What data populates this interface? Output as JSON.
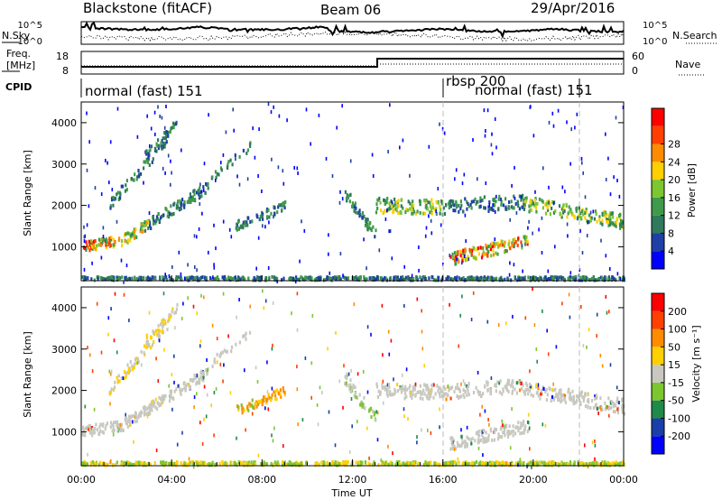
{
  "header": {
    "station": "Blackstone (fitACF)",
    "beam": "Beam 06",
    "date": "29/Apr/2016"
  },
  "noise_panel": {
    "left_label": "N.Sky",
    "right_label": "N.Search",
    "ticks_left": [
      "10^5",
      "10^0"
    ],
    "ticks_right": [
      "10^5",
      "10^0"
    ]
  },
  "freq_panel": {
    "left_label_1": "Freq.",
    "left_label_2": "[MHz]",
    "right_label": "Nave",
    "ticks_left": [
      "18",
      "8"
    ],
    "ticks_right": [
      "60",
      "0"
    ]
  },
  "cpid_panel": {
    "label": "CPID",
    "segments": [
      {
        "label": "normal (fast) 151",
        "start_hour": 0
      },
      {
        "label": "rbsp 200",
        "start_hour": 16
      },
      {
        "label": "normal (fast) 151",
        "start_hour": 16.9
      }
    ]
  },
  "chart_data": [
    {
      "type": "heatmap",
      "name": "power",
      "ylabel": "Slant Range [km]",
      "ylim": [
        180,
        4500
      ],
      "yticks": [
        "1000",
        "2000",
        "3000",
        "4000"
      ],
      "colorbar_label": "Power [dB]",
      "colorbar_ticks": [
        "4",
        "8",
        "12",
        "16",
        "20",
        "24",
        "28"
      ],
      "colors": [
        "#0000ff",
        "#1f3fa6",
        "#2e7a5a",
        "#3f9a4a",
        "#7cc630",
        "#ffcf00",
        "#ff8c00",
        "#ff4000",
        "#ff0000"
      ]
    },
    {
      "type": "heatmap",
      "name": "velocity",
      "ylabel": "Slant Range [km]",
      "ylim": [
        180,
        4500
      ],
      "yticks": [
        "1000",
        "2000",
        "3000",
        "4000"
      ],
      "colorbar_label": "Velocity [m s⁻¹]",
      "colorbar_ticks": [
        "200",
        "100",
        "50",
        "15",
        "-15",
        "-50",
        "-100",
        "-200"
      ],
      "colors": [
        "#0000ff",
        "#1a3fa8",
        "#1f8a4a",
        "#7cc630",
        "#c8c8c0",
        "#ffcf00",
        "#ff8c00",
        "#ff4000",
        "#ff0000"
      ]
    }
  ],
  "xaxis": {
    "label": "Time UT",
    "ticks": [
      "00:00",
      "04:00",
      "08:00",
      "12:00",
      "16:00",
      "20:00",
      "00:00"
    ]
  }
}
